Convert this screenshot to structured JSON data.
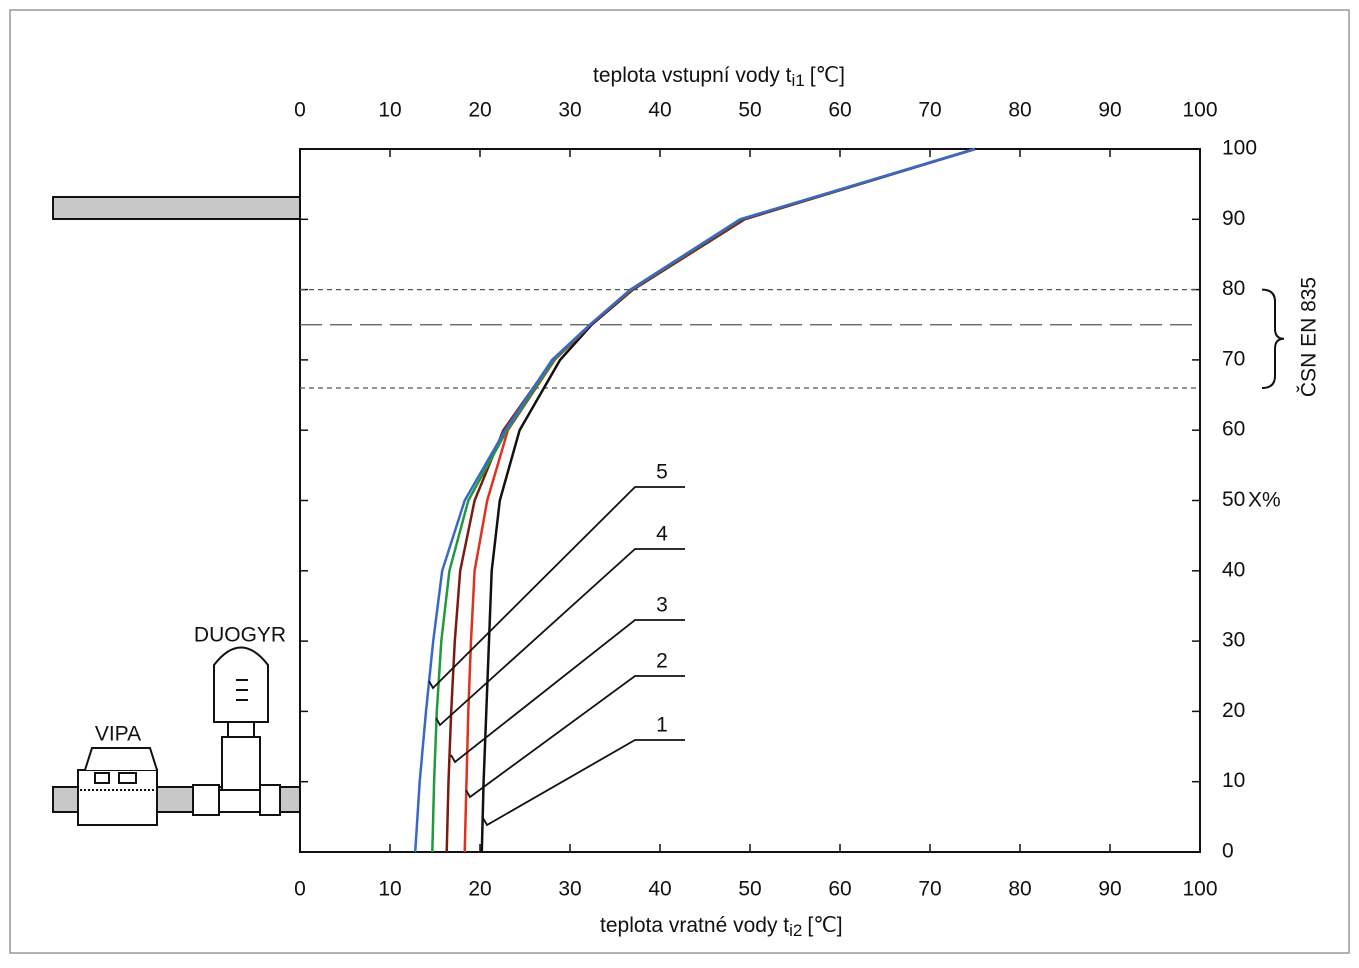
{
  "chart_data": {
    "type": "line",
    "x_label": {
      "text": "teplota vratné vody t",
      "sub": "i2",
      "unit": "[℃]"
    },
    "x2_label": {
      "text": "teplota vstupní vody t",
      "sub": "i1",
      "unit": "[℃]"
    },
    "y_label": "X%",
    "xlim": [
      0,
      100
    ],
    "xticks": [
      0,
      10,
      20,
      30,
      40,
      50,
      60,
      70,
      80,
      90,
      100
    ],
    "x2lim": [
      0,
      100
    ],
    "x2ticks": [
      0,
      10,
      20,
      30,
      40,
      50,
      60,
      70,
      80,
      90,
      100
    ],
    "ylim": [
      0,
      100
    ],
    "yticks": [
      0,
      10,
      20,
      30,
      40,
      50,
      60,
      70,
      80,
      90,
      100
    ],
    "series": [
      {
        "name": "1",
        "color": "#111111",
        "x": [
          20.2,
          20.4,
          20.7,
          21.0,
          21.3,
          22.2,
          24.4,
          28.9,
          32.4,
          37.0,
          49.4,
          75
        ],
        "values": [
          0,
          10,
          20,
          30,
          40,
          50,
          60,
          70,
          75,
          80,
          90,
          100
        ]
      },
      {
        "name": "2",
        "color": "#e0301e",
        "x": [
          18.3,
          18.5,
          18.7,
          19.0,
          19.4,
          20.8,
          23.1,
          28.3,
          32.3,
          36.9,
          49.3,
          75
        ],
        "values": [
          0,
          10,
          20,
          30,
          40,
          50,
          60,
          70,
          75,
          80,
          90,
          100
        ]
      },
      {
        "name": "3",
        "color": "#7a1a12",
        "x": [
          16.3,
          16.5,
          16.8,
          17.2,
          17.8,
          19.4,
          22.6,
          28.1,
          32.3,
          36.8,
          49.2,
          75
        ],
        "values": [
          0,
          10,
          20,
          30,
          40,
          50,
          60,
          70,
          75,
          80,
          90,
          100
        ]
      },
      {
        "name": "4",
        "color": "#1f9a3c",
        "x": [
          14.7,
          14.9,
          15.2,
          15.7,
          16.6,
          18.7,
          23.0,
          28.2,
          32.2,
          36.8,
          49.0,
          75
        ],
        "values": [
          0,
          10,
          20,
          30,
          40,
          50,
          60,
          70,
          75,
          80,
          90,
          100
        ]
      },
      {
        "name": "5",
        "color": "#3a68c8",
        "x": [
          12.8,
          13.3,
          14.0,
          14.8,
          15.8,
          18.3,
          22.8,
          28.0,
          32.2,
          36.7,
          48.9,
          75
        ],
        "values": [
          0,
          10,
          20,
          30,
          40,
          50,
          60,
          70,
          75,
          80,
          90,
          100
        ]
      }
    ],
    "hlines": [
      {
        "value": 80,
        "style": "short"
      },
      {
        "value": 75,
        "style": "long"
      },
      {
        "value": 66,
        "style": "short"
      }
    ],
    "bracket_label": "ČSN EN 835",
    "annotations": [
      "VIPA",
      "DUOGYR"
    ]
  }
}
